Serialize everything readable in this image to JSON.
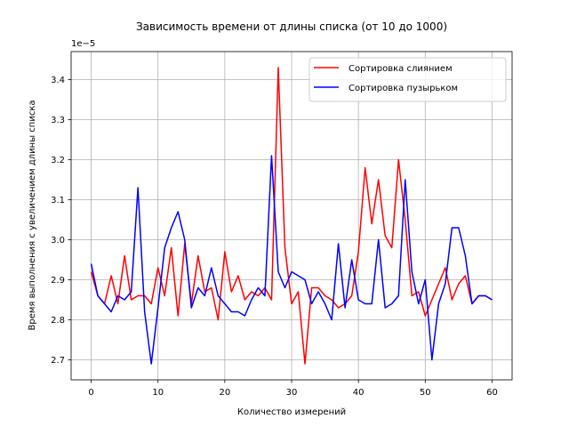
{
  "chart_data": {
    "type": "line",
    "title": "Зависимость времени от длины списка (от 10 до 1000)",
    "xlabel": "Количество измерений",
    "ylabel": "Время выполнения с увеличением длины списка",
    "y_offset_label": "1e−5",
    "xlim": [
      -3,
      63
    ],
    "ylim": [
      2.65,
      3.47
    ],
    "xticks": [
      0,
      10,
      20,
      30,
      40,
      50,
      60
    ],
    "yticks": [
      2.7,
      2.8,
      2.9,
      3.0,
      3.1,
      3.2,
      3.3,
      3.4
    ],
    "grid": true,
    "legend_position": "upper-right",
    "series": [
      {
        "name": "Сортировка слиянием",
        "color": "#ff0000",
        "x": [
          0,
          1,
          2,
          3,
          4,
          5,
          6,
          7,
          8,
          9,
          10,
          11,
          12,
          13,
          14,
          15,
          16,
          17,
          18,
          19,
          20,
          21,
          22,
          23,
          24,
          25,
          26,
          27,
          28,
          29,
          30,
          31,
          32,
          33,
          34,
          35,
          36,
          37,
          38,
          39,
          40,
          41,
          42,
          43,
          44,
          45,
          46,
          47,
          48,
          49,
          50,
          51,
          52,
          53,
          54,
          55,
          56,
          57,
          58,
          59,
          60
        ],
        "values": [
          2.92,
          2.86,
          2.84,
          2.91,
          2.84,
          2.96,
          2.85,
          2.86,
          2.86,
          2.84,
          2.93,
          2.86,
          2.98,
          2.81,
          2.99,
          2.84,
          2.96,
          2.87,
          2.88,
          2.8,
          2.97,
          2.87,
          2.91,
          2.85,
          2.87,
          2.86,
          2.88,
          2.85,
          3.43,
          2.98,
          2.84,
          2.87,
          2.69,
          2.88,
          2.88,
          2.86,
          2.85,
          2.83,
          2.84,
          2.86,
          2.97,
          3.18,
          3.04,
          3.15,
          3.01,
          2.98,
          3.2,
          3.05,
          2.86,
          2.87,
          2.81,
          2.85,
          2.89,
          2.93,
          2.85,
          2.89,
          2.91,
          2.84,
          2.86,
          2.86,
          2.85
        ]
      },
      {
        "name": "Сортировка пузырьком",
        "color": "#0000ff",
        "x": [
          0,
          1,
          2,
          3,
          4,
          5,
          6,
          7,
          8,
          9,
          10,
          11,
          12,
          13,
          14,
          15,
          16,
          17,
          18,
          19,
          20,
          21,
          22,
          23,
          24,
          25,
          26,
          27,
          28,
          29,
          30,
          31,
          32,
          33,
          34,
          35,
          36,
          37,
          38,
          39,
          40,
          41,
          42,
          43,
          44,
          45,
          46,
          47,
          48,
          49,
          50,
          51,
          52,
          53,
          54,
          55,
          56,
          57,
          58,
          59,
          60
        ],
        "values": [
          2.94,
          2.86,
          2.84,
          2.82,
          2.86,
          2.85,
          2.87,
          3.13,
          2.82,
          2.69,
          2.83,
          2.98,
          3.03,
          3.07,
          3.0,
          2.83,
          2.88,
          2.86,
          2.93,
          2.86,
          2.84,
          2.82,
          2.82,
          2.81,
          2.85,
          2.88,
          2.86,
          3.21,
          2.92,
          2.88,
          2.92,
          2.91,
          2.9,
          2.84,
          2.87,
          2.84,
          2.8,
          2.99,
          2.83,
          2.95,
          2.85,
          2.84,
          2.84,
          3.0,
          2.83,
          2.84,
          2.86,
          3.15,
          2.92,
          2.84,
          2.9,
          2.7,
          2.84,
          2.89,
          3.03,
          3.03,
          2.96,
          2.84,
          2.86,
          2.86,
          2.85
        ]
      }
    ]
  }
}
